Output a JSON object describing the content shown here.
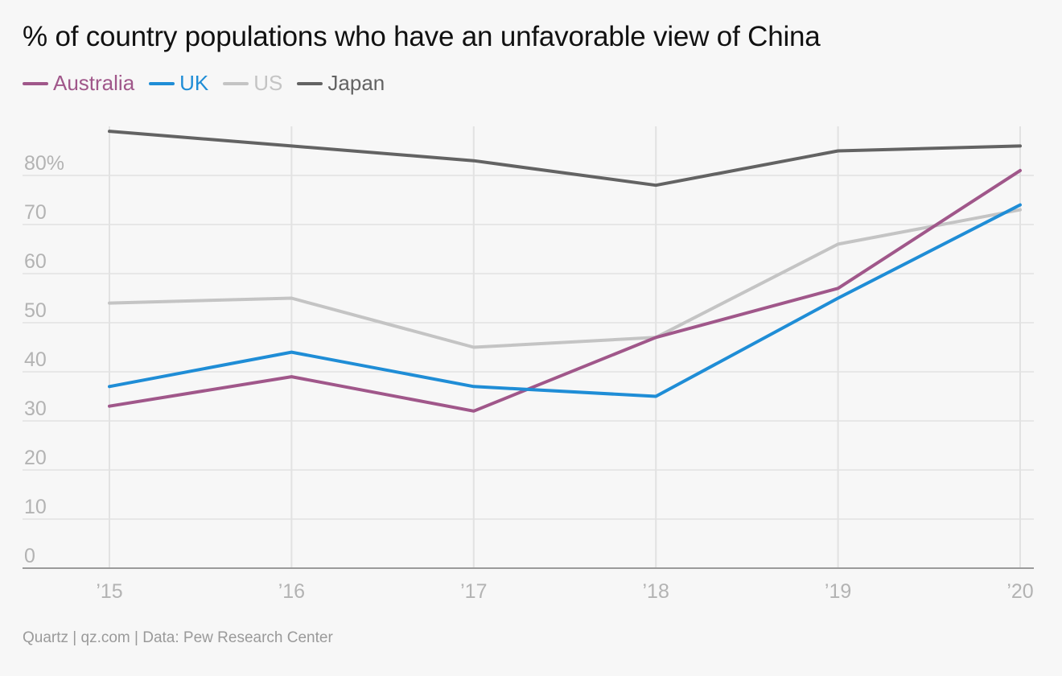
{
  "title": "% of country populations who have an unfavorable view of China",
  "source": "Quartz | qz.com | Data: Pew Research Center",
  "chart_data": {
    "type": "line",
    "title": "% of country populations who have an unfavorable view of China",
    "x": [
      "’15",
      "’16",
      "’17",
      "’18",
      "’19",
      "’20"
    ],
    "y_ticks": [
      "0",
      "10",
      "20",
      "30",
      "40",
      "50",
      "60",
      "70",
      "80%"
    ],
    "ylim": [
      0,
      90
    ],
    "grid": true,
    "legend_placement": "top-left",
    "series": [
      {
        "name": "Australia",
        "color": "#a0578a",
        "values": [
          33,
          39,
          32,
          47,
          57,
          81
        ]
      },
      {
        "name": "UK",
        "color": "#1f8dd6",
        "values": [
          37,
          44,
          37,
          35,
          55,
          74
        ]
      },
      {
        "name": "US",
        "color": "#c4c4c4",
        "values": [
          54,
          55,
          45,
          47,
          66,
          73
        ]
      },
      {
        "name": "Japan",
        "color": "#636363",
        "values": [
          89,
          86,
          83,
          78,
          85,
          86
        ]
      }
    ]
  }
}
